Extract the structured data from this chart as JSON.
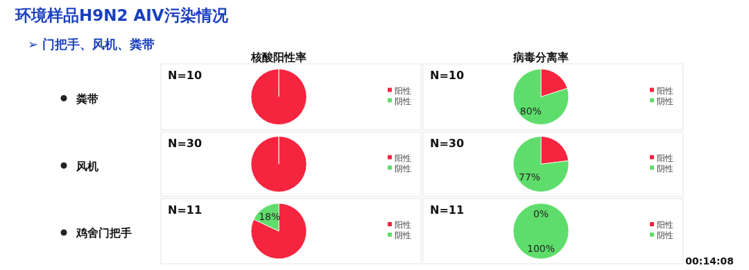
{
  "chart_data": [
    {
      "type": "pie",
      "title": "核酸阳性率",
      "categories": [
        "阳性",
        "阴性"
      ],
      "values": [
        100,
        0
      ],
      "colors": [
        "#f5243f",
        "#5fdd6c"
      ],
      "value_labels": [
        null,
        null
      ],
      "legend": "right",
      "annotations": [
        "N=10",
        "粪带",
        "环境样品H9N2 AIV污染情况",
        "➢ 门把手、风机、粪带"
      ]
    },
    {
      "type": "pie",
      "title": "病毒分离率",
      "categories": [
        "阳性",
        "阴性"
      ],
      "values": [
        20,
        80
      ],
      "colors": [
        "#f5243f",
        "#5fdd6c"
      ],
      "value_labels": [
        null,
        "80%"
      ],
      "legend": "right",
      "annotations": [
        "N=10"
      ]
    },
    {
      "type": "pie",
      "categories": [
        "阳性",
        "阴性"
      ],
      "values": [
        100,
        0
      ],
      "colors": [
        "#f5243f",
        "#5fdd6c"
      ],
      "value_labels": [
        null,
        null
      ],
      "legend": "right",
      "annotations": [
        "N=30",
        "风机"
      ]
    },
    {
      "type": "pie",
      "categories": [
        "阳性",
        "阴性"
      ],
      "values": [
        23,
        77
      ],
      "colors": [
        "#f5243f",
        "#5fdd6c"
      ],
      "value_labels": [
        null,
        "77%"
      ],
      "legend": "right",
      "annotations": [
        "N=30"
      ]
    },
    {
      "type": "pie",
      "categories": [
        "阳性",
        "阴性"
      ],
      "values": [
        82,
        18
      ],
      "colors": [
        "#f5243f",
        "#5fdd6c"
      ],
      "value_labels": [
        null,
        "18%"
      ],
      "legend": "right",
      "annotations": [
        "N=11",
        "鸡舍门把手"
      ]
    },
    {
      "type": "pie",
      "categories": [
        "阳性",
        "阴性"
      ],
      "values": [
        0,
        100
      ],
      "colors": [
        "#f5243f",
        "#5fdd6c"
      ],
      "value_labels": [
        "0%",
        "100%"
      ],
      "legend": "right",
      "annotations": [
        "N=11",
        "00:14:08"
      ]
    }
  ]
}
